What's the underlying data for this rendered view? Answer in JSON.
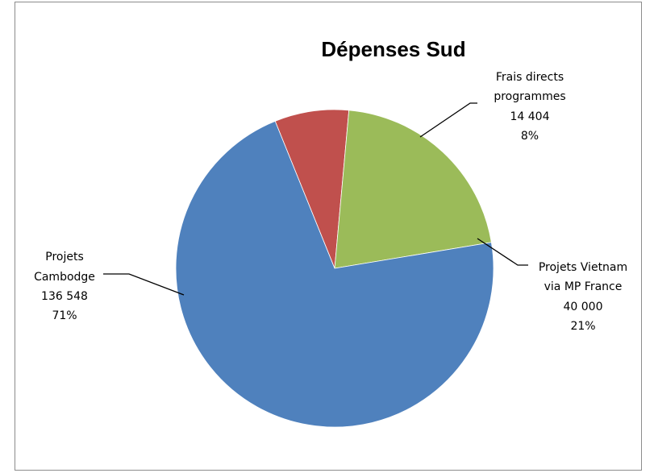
{
  "chart_data": {
    "type": "pie",
    "title": "Dépenses Sud",
    "slices": [
      {
        "name": "Frais directs programmes",
        "label_lines": [
          "Frais directs",
          "programmes"
        ],
        "value_text": "14 404",
        "percent_text": "8%",
        "value": 14404,
        "color": "#C0504D"
      },
      {
        "name": "Projets Vietnam via MP France",
        "label_lines": [
          "Projets Vietnam",
          "via MP France"
        ],
        "value_text": "40 000",
        "percent_text": "21%",
        "value": 40000,
        "color": "#9BBB59"
      },
      {
        "name": "Projets Cambodge",
        "label_lines": [
          "Projets",
          "Cambodge"
        ],
        "value_text": "136 548",
        "percent_text": "71%",
        "value": 136548,
        "color": "#4F81BD"
      }
    ],
    "legend": "none"
  }
}
